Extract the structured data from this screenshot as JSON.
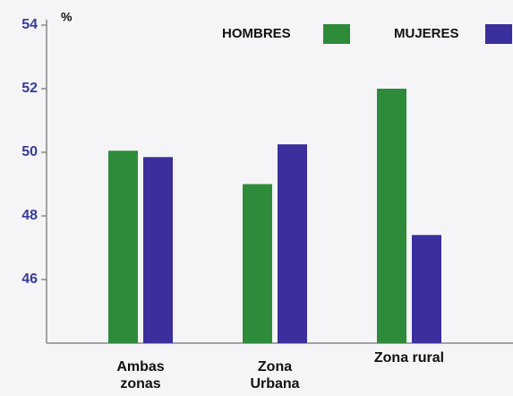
{
  "chart_data": {
    "type": "bar",
    "y_label": "%",
    "categories": [
      "Ambas zonas",
      "Zona Urbana",
      "Zona rural"
    ],
    "series": [
      {
        "name": "HOMBRES",
        "color": "#2e8b3a",
        "values": [
          50.05,
          49.0,
          52.0
        ]
      },
      {
        "name": "MUJERES",
        "color": "#3a2f9c",
        "values": [
          49.85,
          50.25,
          47.4
        ]
      }
    ],
    "ylim": [
      44,
      54
    ],
    "yticks": [
      46,
      48,
      50,
      52,
      54
    ],
    "legend": "top-right"
  }
}
